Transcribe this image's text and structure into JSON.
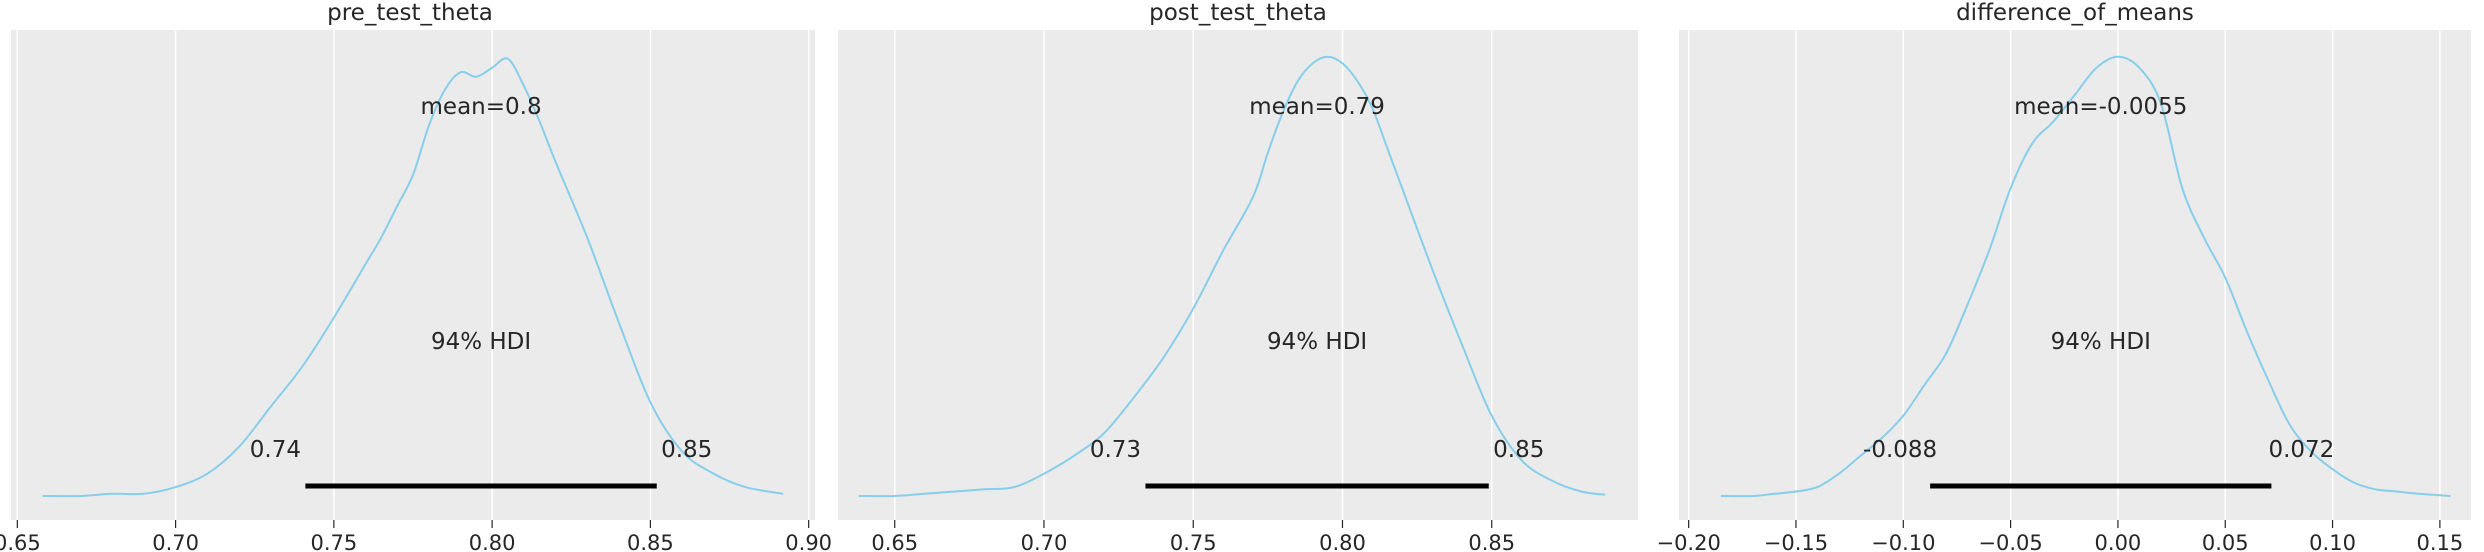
{
  "chart_data": [
    {
      "type": "line",
      "title": "pre_test_theta",
      "x_ticks": [
        "0.65",
        "0.70",
        "0.75",
        "0.80",
        "0.85",
        "0.90"
      ],
      "xlim": [
        0.648,
        0.902
      ],
      "mean_label": "mean=0.8",
      "hdi_label": "94% HDI",
      "hdi": [
        0.741,
        0.852
      ],
      "hdi_low_label": "0.74",
      "hdi_high_label": "0.85",
      "density_color": "#87ceeb",
      "density": {
        "x": [
          0.658,
          0.67,
          0.68,
          0.69,
          0.7,
          0.71,
          0.72,
          0.73,
          0.74,
          0.75,
          0.76,
          0.765,
          0.77,
          0.775,
          0.78,
          0.785,
          0.79,
          0.795,
          0.8,
          0.805,
          0.81,
          0.815,
          0.82,
          0.83,
          0.84,
          0.85,
          0.86,
          0.87,
          0.88,
          0.892
        ],
        "y": [
          0.0,
          0.0,
          0.005,
          0.005,
          0.02,
          0.05,
          0.11,
          0.2,
          0.29,
          0.4,
          0.52,
          0.58,
          0.65,
          0.72,
          0.83,
          0.91,
          0.95,
          0.94,
          0.96,
          0.98,
          0.92,
          0.84,
          0.75,
          0.58,
          0.39,
          0.21,
          0.1,
          0.05,
          0.02,
          0.005
        ]
      }
    },
    {
      "type": "line",
      "title": "post_test_theta",
      "x_ticks": [
        "0.65",
        "0.70",
        "0.75",
        "0.80",
        "0.85"
      ],
      "xlim": [
        0.631,
        0.899
      ],
      "mean_label": "mean=0.79",
      "hdi_label": "94% HDI",
      "hdi": [
        0.734,
        0.849
      ],
      "hdi_low_label": "0.73",
      "hdi_high_label": "0.85",
      "density_color": "#87ceeb",
      "density": {
        "x": [
          0.638,
          0.65,
          0.66,
          0.67,
          0.68,
          0.69,
          0.7,
          0.71,
          0.72,
          0.73,
          0.74,
          0.75,
          0.76,
          0.77,
          0.775,
          0.78,
          0.785,
          0.79,
          0.795,
          0.8,
          0.805,
          0.81,
          0.815,
          0.82,
          0.83,
          0.84,
          0.85,
          0.86,
          0.87,
          0.88,
          0.888
        ],
        "y": [
          0.0,
          0.0,
          0.005,
          0.01,
          0.015,
          0.02,
          0.05,
          0.09,
          0.14,
          0.22,
          0.31,
          0.42,
          0.55,
          0.67,
          0.77,
          0.86,
          0.93,
          0.97,
          0.985,
          0.97,
          0.93,
          0.87,
          0.78,
          0.69,
          0.51,
          0.34,
          0.18,
          0.08,
          0.035,
          0.01,
          0.003
        ]
      }
    },
    {
      "type": "line",
      "title": "difference_of_means",
      "x_ticks": [
        "−0.20",
        "−0.15",
        "−0.10",
        "−0.05",
        "0.00",
        "0.05",
        "0.10",
        "0.15"
      ],
      "xlim": [
        -0.2045,
        0.1645
      ],
      "mean_label": "mean=-0.0055",
      "hdi_label": "94% HDI",
      "hdi": [
        -0.0875,
        0.0715
      ],
      "hdi_low_label": "-0.088",
      "hdi_high_label": "0.072",
      "density_color": "#87ceeb",
      "density": {
        "x": [
          -0.185,
          -0.17,
          -0.16,
          -0.15,
          -0.14,
          -0.13,
          -0.12,
          -0.11,
          -0.1,
          -0.09,
          -0.08,
          -0.07,
          -0.06,
          -0.05,
          -0.04,
          -0.03,
          -0.02,
          -0.01,
          0.0,
          0.01,
          0.02,
          0.03,
          0.04,
          0.05,
          0.06,
          0.07,
          0.08,
          0.09,
          0.1,
          0.11,
          0.12,
          0.13,
          0.14,
          0.155
        ],
        "y": [
          0.0,
          0.0,
          0.005,
          0.01,
          0.02,
          0.05,
          0.09,
          0.13,
          0.18,
          0.25,
          0.32,
          0.43,
          0.55,
          0.69,
          0.79,
          0.84,
          0.9,
          0.96,
          0.985,
          0.96,
          0.88,
          0.69,
          0.58,
          0.49,
          0.37,
          0.26,
          0.16,
          0.1,
          0.06,
          0.03,
          0.015,
          0.01,
          0.005,
          0.0
        ]
      }
    }
  ]
}
